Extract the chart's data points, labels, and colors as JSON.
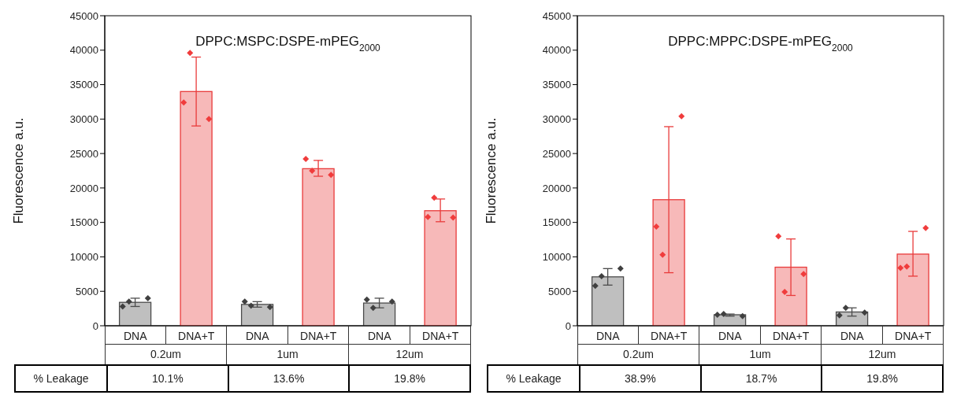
{
  "chart_data": [
    {
      "type": "bar",
      "title": "DPPC:MSPC:DSPE-mPEG$_{2000}$",
      "ylabel": "Fluorescence a.u.",
      "categories": [
        "DNA",
        "DNA+T",
        "DNA",
        "DNA+T",
        "DNA",
        "DNA+T"
      ],
      "ylim": [
        0,
        45000
      ],
      "yticks": [
        0,
        5000,
        10000,
        15000,
        20000,
        25000,
        30000,
        35000,
        40000,
        45000
      ],
      "marker": "diamond",
      "series": [
        {
          "colors": [
            "#bfbfbf",
            "#f7b9b9",
            "#bfbfbf",
            "#f7b9b9",
            "#bfbfbf",
            "#f7b9b9"
          ],
          "values": [
            3400,
            34000,
            3100,
            22800,
            3300,
            16700
          ],
          "errors": [
            [
              2800,
              4000
            ],
            [
              29000,
              39000
            ],
            [
              2700,
              3500
            ],
            [
              21700,
              24000
            ],
            [
              2600,
              4000
            ],
            [
              15100,
              18400
            ]
          ]
        },
        {
          "type": "scatter",
          "colors": [
            "#404040",
            "#f03c3c",
            "#404040",
            "#f03c3c",
            "#404040",
            "#f03c3c"
          ],
          "values": [
            2800,
            32400,
            3500,
            24200,
            3800,
            15800
          ]
        },
        {
          "type": "scatter",
          "colors": [
            "#404040",
            "#f03c3c",
            "#404040",
            "#f03c3c",
            "#404040",
            "#f03c3c"
          ],
          "values": [
            4000,
            30000,
            2700,
            21900,
            3500,
            15700
          ]
        },
        {
          "type": "scatter",
          "colors": [
            "#404040",
            "#f03c3c",
            "#404040",
            "#f03c3c",
            "#404040",
            "#f03c3c"
          ],
          "values": [
            3500,
            39600,
            2900,
            22500,
            2600,
            18600
          ]
        }
      ],
      "annotations": [
        "0.2um",
        "1um",
        "12um",
        "% Leakage",
        "10.1%",
        "13.6%",
        "19.8%"
      ]
    },
    {
      "type": "bar",
      "title": "DPPC:MPPC:DSPE-mPEG$_{2000}$",
      "ylabel": "Fluorescence a.u.",
      "categories": [
        "DNA",
        "DNA+T",
        "DNA",
        "DNA+T",
        "DNA",
        "DNA+T"
      ],
      "ylim": [
        0,
        45000
      ],
      "yticks": [
        0,
        5000,
        10000,
        15000,
        20000,
        25000,
        30000,
        35000,
        40000,
        45000
      ],
      "marker": "diamond",
      "series": [
        {
          "colors": [
            "#bfbfbf",
            "#f7b9b9",
            "#bfbfbf",
            "#f7b9b9",
            "#bfbfbf",
            "#f7b9b9"
          ],
          "values": [
            7100,
            18300,
            1600,
            8500,
            2000,
            10400
          ],
          "errors": [
            [
              5900,
              8300
            ],
            [
              7700,
              28900
            ],
            [
              1400,
              1700
            ],
            [
              4400,
              12600
            ],
            [
              1400,
              2600
            ],
            [
              7200,
              13700
            ]
          ]
        },
        {
          "type": "scatter",
          "colors": [
            "#404040",
            "#f03c3c",
            "#404040",
            "#f03c3c",
            "#404040",
            "#f03c3c"
          ],
          "values": [
            5800,
            14400,
            1600,
            13000,
            1500,
            8400
          ]
        },
        {
          "type": "scatter",
          "colors": [
            "#404040",
            "#f03c3c",
            "#404040",
            "#f03c3c",
            "#404040",
            "#f03c3c"
          ],
          "values": [
            8300,
            30400,
            1400,
            7500,
            1900,
            14200
          ]
        },
        {
          "type": "scatter",
          "colors": [
            "#404040",
            "#f03c3c",
            "#404040",
            "#f03c3c",
            "#404040",
            "#f03c3c"
          ],
          "values": [
            7200,
            10300,
            1700,
            4900,
            2600,
            8600
          ]
        }
      ],
      "annotations": [
        "0.2um",
        "1um",
        "12um",
        "% Leakage",
        "38.9%",
        "18.7%",
        "19.8%"
      ]
    }
  ]
}
